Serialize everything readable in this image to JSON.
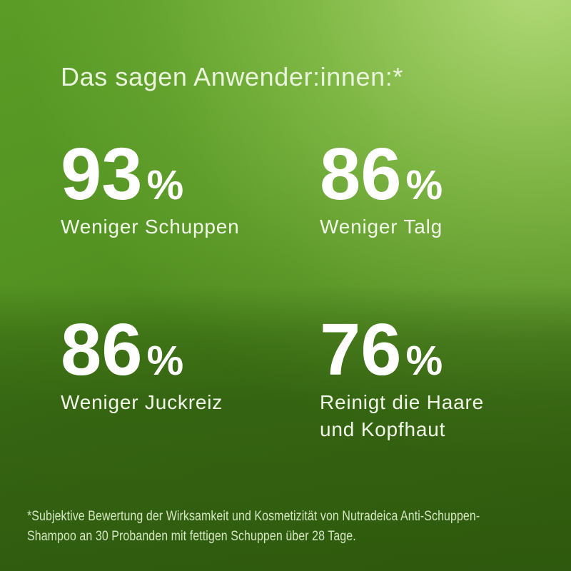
{
  "title": "Das sagen Anwender:innen:*",
  "stats": [
    {
      "value": "93",
      "unit": "%",
      "label": "Weniger Schuppen"
    },
    {
      "value": "86",
      "unit": "%",
      "label": "Weniger Talg"
    },
    {
      "value": "86",
      "unit": "%",
      "label": "Weniger Juckreiz"
    },
    {
      "value": "76",
      "unit": "%",
      "label": "Reinigt die Haare\nund Kopfhaut"
    }
  ],
  "footnote": "*Subjektive Bewertung der Wirksamkeit und Kosmetizität von Nutradeica Anti-Schuppen-\nShampoo an 30 Probanden mit fettigen Schuppen über 28 Tage.",
  "colors": {
    "background_top_left": "#5a9e28",
    "background_top_right": "#aad66e",
    "background_center": "#5f9e26",
    "background_bottom": "#3a6610",
    "stat_number": "#ffffff",
    "title_text": "#eaf4dc",
    "label_text": "#f1f7e8",
    "footnote_text": "#d6e7c2"
  }
}
